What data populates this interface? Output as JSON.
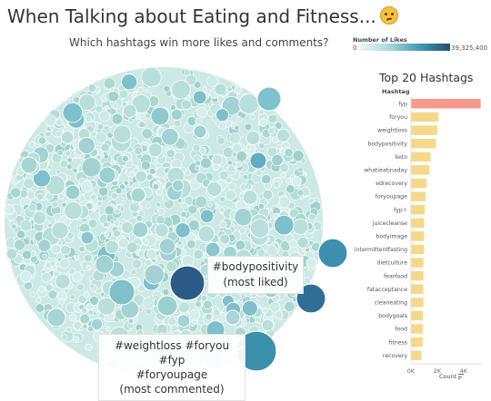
{
  "title": "When Talking about Eating and Fitness...",
  "title_emoji": "thinking-face-emoji",
  "subtitle": "Which hashtags win more likes and comments?",
  "legend": {
    "title": "Number of Likes",
    "min_label": "0",
    "max_label": "39,325,400",
    "colors": [
      "#f2f7f7",
      "#a8d8d8",
      "#3d9bb5",
      "#24506f"
    ]
  },
  "annotations": {
    "most_liked_tag": "#bodypositivity",
    "most_liked_note": "(most liked)",
    "most_commented_line1": "#weightloss #foryou #fyp",
    "most_commented_line2": "#foryoupage",
    "most_commented_note": "(most commented)"
  },
  "colors": {
    "bubble_base": "#bfe3df",
    "bar_default": "#f5d98a",
    "bar_highlight": "#f5998a"
  },
  "chart_data": [
    {
      "type": "bubble",
      "color_measure": "Number of Likes",
      "highlighted_bubbles": [
        {
          "label": "#bodypositivity",
          "role": "most liked",
          "likes": 39325400
        },
        {
          "label": "#weightloss #foryou #fyp #foryoupage",
          "role": "most commented"
        }
      ]
    },
    {
      "type": "bar",
      "orientation": "horizontal",
      "title": "Top 20 Hashtags",
      "category_header": "Hashtag",
      "xlabel": "Count",
      "categories": [
        "fyp",
        "foryou",
        "weightloss",
        "bodypositivity",
        "keto",
        "whatieatinaday",
        "edrecovery",
        "foryoupage",
        "fyp✌",
        "juicecleanse",
        "bodyimage",
        "intermittentfasting",
        "dietculture",
        "fearfood",
        "fatacceptance",
        "cleaneating",
        "bodygoals",
        "food",
        "fitness",
        "recovery"
      ],
      "values": [
        5300,
        2100,
        2000,
        1900,
        1500,
        1400,
        1200,
        1100,
        1050,
        1000,
        1000,
        1000,
        950,
        950,
        950,
        950,
        900,
        900,
        900,
        800
      ],
      "highlight": "fyp",
      "xlim": [
        0,
        5400
      ],
      "xticks": [
        "0K",
        "2K",
        "4K"
      ],
      "xtick_values": [
        0,
        2000,
        4000
      ]
    }
  ]
}
